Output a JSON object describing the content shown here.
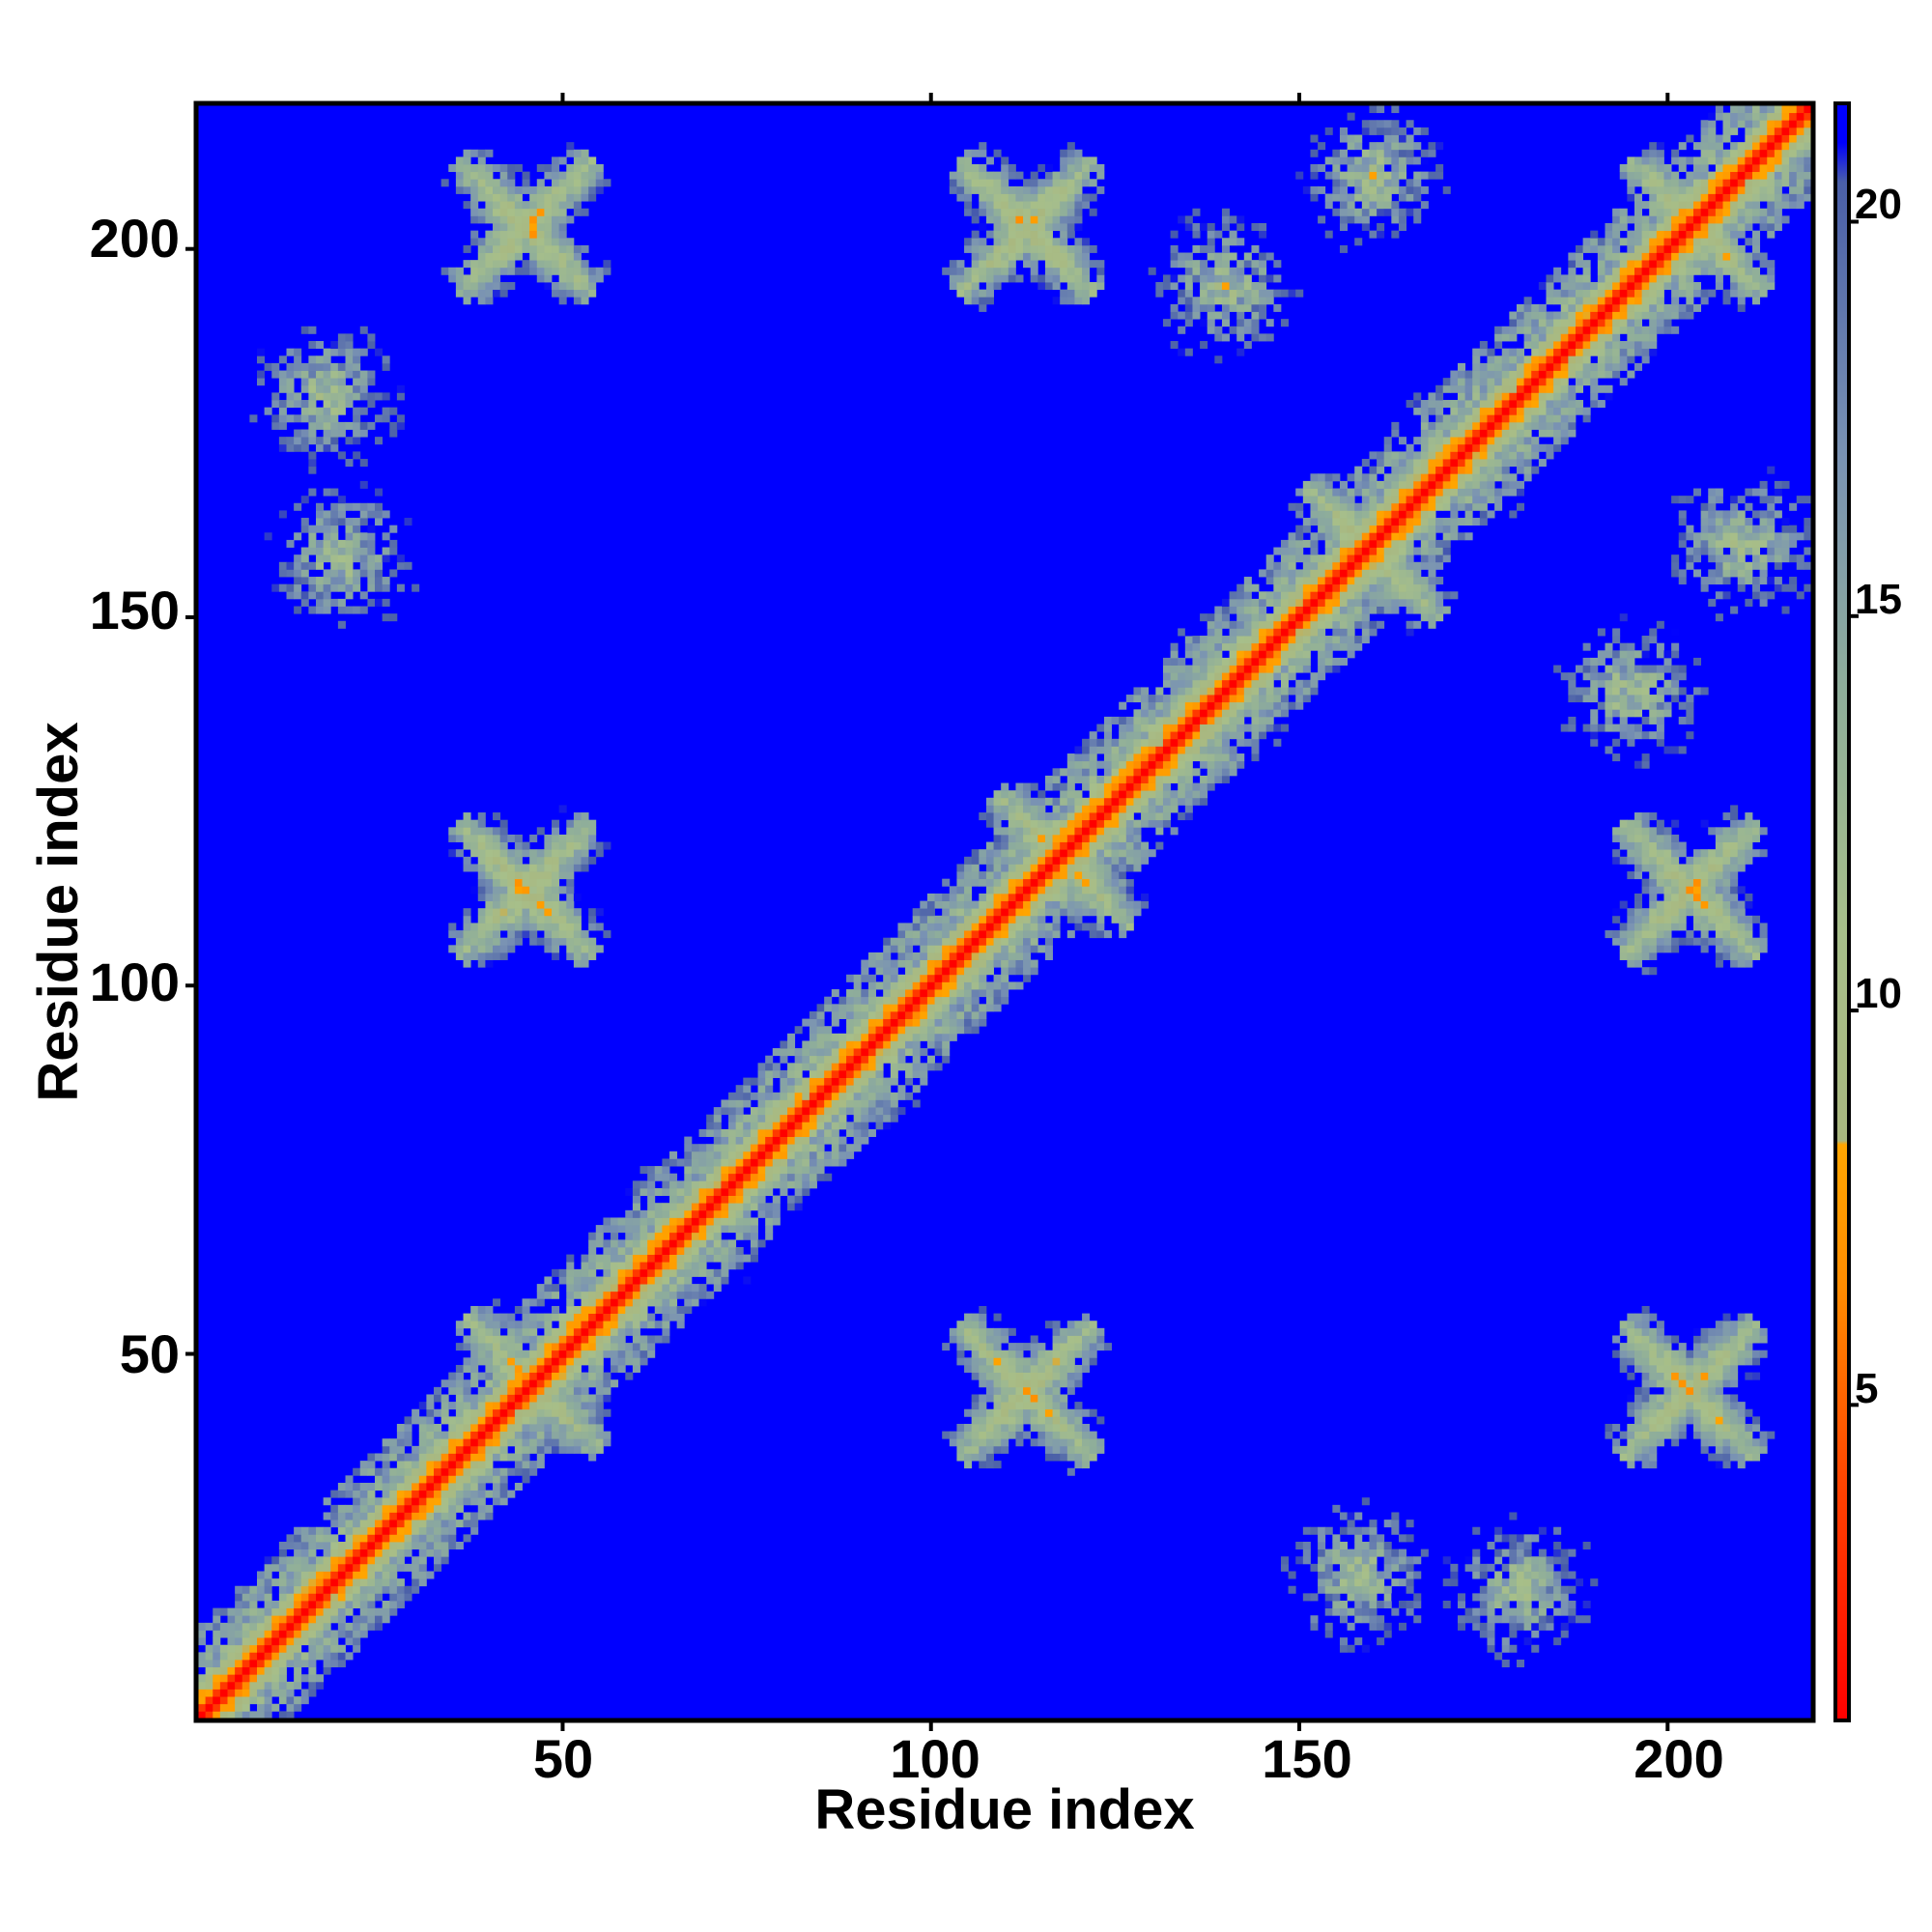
{
  "chart_data": {
    "type": "heatmap",
    "title": "",
    "xlabel": "Residue index",
    "ylabel": "Residue index",
    "n_residues": 219,
    "xlim": [
      1,
      219
    ],
    "ylim": [
      1,
      219
    ],
    "x_ticks": [
      "50",
      "100",
      "150",
      "200"
    ],
    "y_ticks": [
      "50",
      "100",
      "150",
      "200"
    ],
    "colorbar": {
      "range": [
        1,
        21.5
      ],
      "ticks": [
        "5",
        "10",
        "15",
        "20"
      ],
      "stops": [
        {
          "value": 1,
          "color": "#ff0000"
        },
        {
          "value": 4,
          "color": "#ff4400"
        },
        {
          "value": 6.5,
          "color": "#ff8c00"
        },
        {
          "value": 8.3,
          "color": "#ffa500"
        },
        {
          "value": 8.35,
          "color": "#a9b77f"
        },
        {
          "value": 11,
          "color": "#a7bf8a"
        },
        {
          "value": 14,
          "color": "#8fae9a"
        },
        {
          "value": 17,
          "color": "#7a93b3"
        },
        {
          "value": 20.5,
          "color": "#4a5fa8"
        },
        {
          "value": 21,
          "color": "#0000ff"
        },
        {
          "value": 21.5,
          "color": "#0000ff"
        }
      ]
    },
    "background_color": "#0000ff",
    "diagonal_color": "#ff0000",
    "description_values": {
      "diagonal_band_residues": 3,
      "contact_crosses": [
        {
          "x": 46,
          "y": 46
        },
        {
          "x": 45,
          "y": 203
        },
        {
          "x": 203,
          "y": 45
        },
        {
          "x": 45,
          "y": 113
        },
        {
          "x": 113,
          "y": 45
        },
        {
          "x": 118,
          "y": 117
        },
        {
          "x": 160,
          "y": 159
        },
        {
          "x": 204,
          "y": 203
        },
        {
          "x": 203,
          "y": 113
        },
        {
          "x": 113,
          "y": 203
        }
      ],
      "contact_patches": [
        {
          "x": 18,
          "y": 180
        },
        {
          "x": 180,
          "y": 18
        },
        {
          "x": 20,
          "y": 158
        },
        {
          "x": 158,
          "y": 20
        },
        {
          "x": 90,
          "y": 90
        },
        {
          "x": 66,
          "y": 66
        },
        {
          "x": 140,
          "y": 140
        },
        {
          "x": 172,
          "y": 172
        },
        {
          "x": 195,
          "y": 140
        },
        {
          "x": 140,
          "y": 195
        },
        {
          "x": 210,
          "y": 160
        },
        {
          "x": 160,
          "y": 210
        }
      ]
    }
  }
}
